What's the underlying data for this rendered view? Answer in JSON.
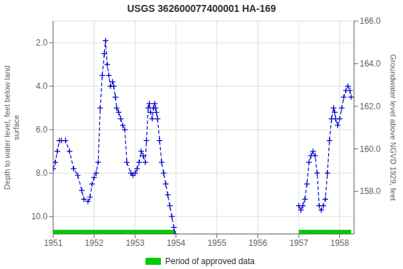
{
  "chart_data": {
    "type": "line",
    "title": "USGS 362600077400001 HA-169",
    "ylabel": "Depth to water level, feet below land\nsurface",
    "y2label": "Groundwater level above NGVD 1929, feet",
    "xlim": [
      1951.0,
      1958.35
    ],
    "xticks": [
      1951,
      1952,
      1953,
      1954,
      1955,
      1956,
      1957,
      1958
    ],
    "ylim": [
      10.8,
      1.0
    ],
    "yticks": [
      {
        "value": 2.0,
        "label": "2.0"
      },
      {
        "value": 4.0,
        "label": "4.0"
      },
      {
        "value": 6.0,
        "label": "6.0"
      },
      {
        "value": 8.0,
        "label": "8.0"
      },
      {
        "value": 10.0,
        "label": "10.0"
      }
    ],
    "y2lim": [
      156.0,
      166.0
    ],
    "y2ticks": [
      {
        "value": 158.0,
        "label": "158.0"
      },
      {
        "value": 160.0,
        "label": "160.0"
      },
      {
        "value": 162.0,
        "label": "162.0"
      },
      {
        "value": 164.0,
        "label": "164.0"
      },
      {
        "value": 166.0,
        "label": "166.0"
      }
    ],
    "grid": true,
    "legend": "bottom",
    "series": [
      {
        "color": "#0000cc",
        "marker": "+",
        "line_style": "dashed",
        "x": [
          1951.0,
          1951.05,
          1951.1,
          1951.15,
          1951.2,
          1951.3,
          1951.4,
          1951.5,
          1951.6,
          1951.7,
          1951.75,
          1951.85,
          1951.9,
          1951.95,
          1952.0,
          1952.05,
          1952.1,
          1952.15,
          1952.2,
          1952.25,
          1952.28,
          1952.32,
          1952.36,
          1952.4,
          1952.45,
          1952.48,
          1952.52,
          1952.55,
          1952.6,
          1952.65,
          1952.7,
          1952.75,
          1952.8,
          1952.9,
          1952.95,
          1953.0,
          1953.05,
          1953.1,
          1953.15,
          1953.2,
          1953.25,
          1953.28,
          1953.32,
          1953.35,
          1953.38,
          1953.42,
          1953.45,
          1953.48,
          1953.5,
          1953.52,
          1953.55,
          1953.6,
          1953.65,
          1953.7,
          1953.75,
          1953.8,
          1953.85,
          1953.9,
          1953.95,
          1953.98
        ],
        "values": [
          7.8,
          7.5,
          7.0,
          6.5,
          6.5,
          6.5,
          7.0,
          7.8,
          8.1,
          8.8,
          9.2,
          9.3,
          9.1,
          8.5,
          8.2,
          8.0,
          7.5,
          5.0,
          3.5,
          2.5,
          1.9,
          3.0,
          3.5,
          4.0,
          3.8,
          4.0,
          4.5,
          5.0,
          5.2,
          5.5,
          5.8,
          6.0,
          7.5,
          8.0,
          8.1,
          8.0,
          7.8,
          7.5,
          7.0,
          7.2,
          7.5,
          6.5,
          5.0,
          4.8,
          5.2,
          5.5,
          5.0,
          4.8,
          5.0,
          5.2,
          5.5,
          6.5,
          7.5,
          8.0,
          8.5,
          9.0,
          9.5,
          10.0,
          10.5,
          10.8
        ]
      },
      {
        "color": "#0000cc",
        "marker": "+",
        "line_style": "dashed",
        "x": [
          1957.0,
          1957.05,
          1957.1,
          1957.15,
          1957.2,
          1957.25,
          1957.3,
          1957.35,
          1957.4,
          1957.45,
          1957.5,
          1957.55,
          1957.6,
          1957.65,
          1957.7,
          1957.75,
          1957.8,
          1957.85,
          1957.88,
          1957.9,
          1957.95,
          1958.0,
          1958.05,
          1958.1,
          1958.15,
          1958.2,
          1958.25,
          1958.28
        ],
        "values": [
          9.5,
          9.7,
          9.5,
          9.2,
          8.5,
          7.5,
          7.2,
          7.0,
          7.2,
          8.0,
          9.5,
          9.7,
          9.5,
          9.2,
          8.0,
          6.5,
          5.5,
          5.0,
          5.2,
          5.5,
          5.8,
          5.5,
          5.0,
          4.5,
          4.2,
          4.0,
          4.2,
          4.5
        ]
      }
    ],
    "periods": {
      "name": "Period of approved data",
      "color": "#00cc00",
      "spans": [
        [
          1951.0,
          1953.98
        ],
        [
          1957.0,
          1958.28
        ]
      ]
    }
  }
}
